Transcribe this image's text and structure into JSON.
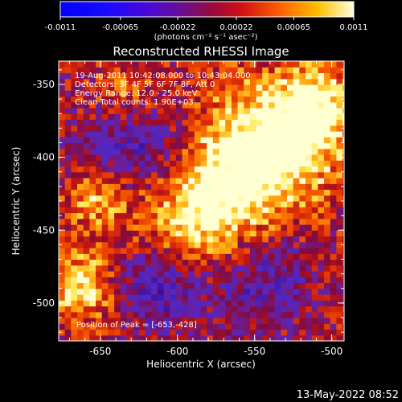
{
  "colorbar": {
    "ticks": [
      "-0.0011",
      "-0.00065",
      "-0.00022",
      "0.00022",
      "0.00065",
      "0.0011"
    ],
    "tick_values": [
      -0.0011,
      -0.00065,
      -0.00022,
      0.00022,
      0.00065,
      0.0011
    ],
    "units": "(photons cm⁻² s⁻¹ asec⁻²)"
  },
  "title": "Reconstructed RHESSI Image",
  "info": {
    "line1": "19-Aug-2011 10:42:08.000 to 10:43:04.000",
    "line2": "Detectors: 3F 4F 5F 6F 7F 8F, Att 0",
    "line3": "Energy Range: 12.0 - 25.0 keV",
    "line4": "Clean     Total counts: 1.90E+03"
  },
  "peak_text": "Position of Peak = [-653,-428]",
  "footer_date": "13-May-2022 08:52",
  "colors": {
    "background": "#000000",
    "map_low": "#3a0a8c",
    "map_mid": "#c81e1e",
    "map_high": "#ffffc8"
  },
  "chart_data": {
    "type": "heatmap",
    "title": "Reconstructed RHESSI Image",
    "xlabel": "Heliocentric X (arcsec)",
    "ylabel": "Heliocentric Y (arcsec)",
    "xlim": [
      -677,
      -492
    ],
    "ylim": [
      -526,
      -334
    ],
    "xticks": [
      -650,
      -600,
      -550,
      -500
    ],
    "yticks": [
      -350,
      -400,
      -450,
      -500
    ],
    "xtick_labels": [
      "-650",
      "-600",
      "-550",
      "-500"
    ],
    "ytick_labels": [
      "-350",
      "-400",
      "-450",
      "-500"
    ],
    "value_range": [
      -0.0011,
      0.0011
    ],
    "peak_position": [
      -653,
      -428
    ],
    "blobs": [
      {
        "x": -560,
        "y": -400,
        "sigma": 35,
        "amplitude": 0.001
      },
      {
        "x": -525,
        "y": -385,
        "sigma": 25,
        "amplitude": 0.0009
      },
      {
        "x": -585,
        "y": -440,
        "sigma": 30,
        "amplitude": 0.0011
      },
      {
        "x": -655,
        "y": -430,
        "sigma": 14,
        "amplitude": 0.0008
      },
      {
        "x": -665,
        "y": -490,
        "sigma": 18,
        "amplitude": 0.001
      },
      {
        "x": -635,
        "y": -355,
        "sigma": 15,
        "amplitude": 0.0006
      },
      {
        "x": -510,
        "y": -360,
        "sigma": 18,
        "amplitude": 0.0007
      },
      {
        "x": -620,
        "y": -395,
        "sigma": 26,
        "amplitude": -0.0009
      },
      {
        "x": -550,
        "y": -480,
        "sigma": 24,
        "amplitude": -0.0008
      },
      {
        "x": -615,
        "y": -490,
        "sigma": 20,
        "amplitude": -0.0009
      }
    ]
  }
}
